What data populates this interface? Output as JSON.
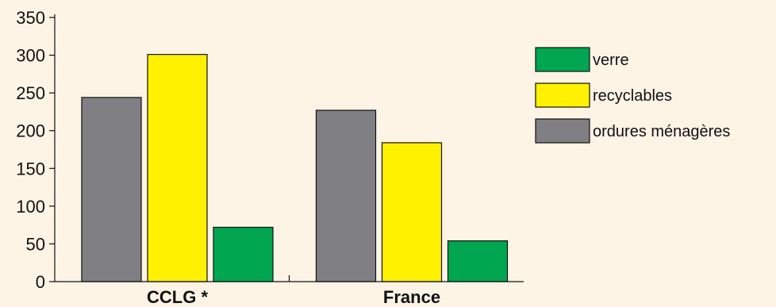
{
  "chart_data": {
    "type": "bar",
    "title": "",
    "xlabel": "",
    "ylabel": "",
    "ylim": [
      0,
      350
    ],
    "yticks": [
      0,
      50,
      100,
      150,
      200,
      250,
      300,
      350
    ],
    "grid": false,
    "legend_position": "right",
    "categories": [
      "CCLG *",
      "France"
    ],
    "series": [
      {
        "name": "ordures ménagères",
        "color": "#808084",
        "values": [
          244,
          227
        ]
      },
      {
        "name": "recyclables",
        "color": "#fff100",
        "values": [
          301,
          184
        ]
      },
      {
        "name": "verre",
        "color": "#00a650",
        "values": [
          72,
          54
        ]
      }
    ],
    "legend_order": [
      "verre",
      "recyclables",
      "ordures ménagères"
    ],
    "background_color": "#fdf4e6"
  }
}
